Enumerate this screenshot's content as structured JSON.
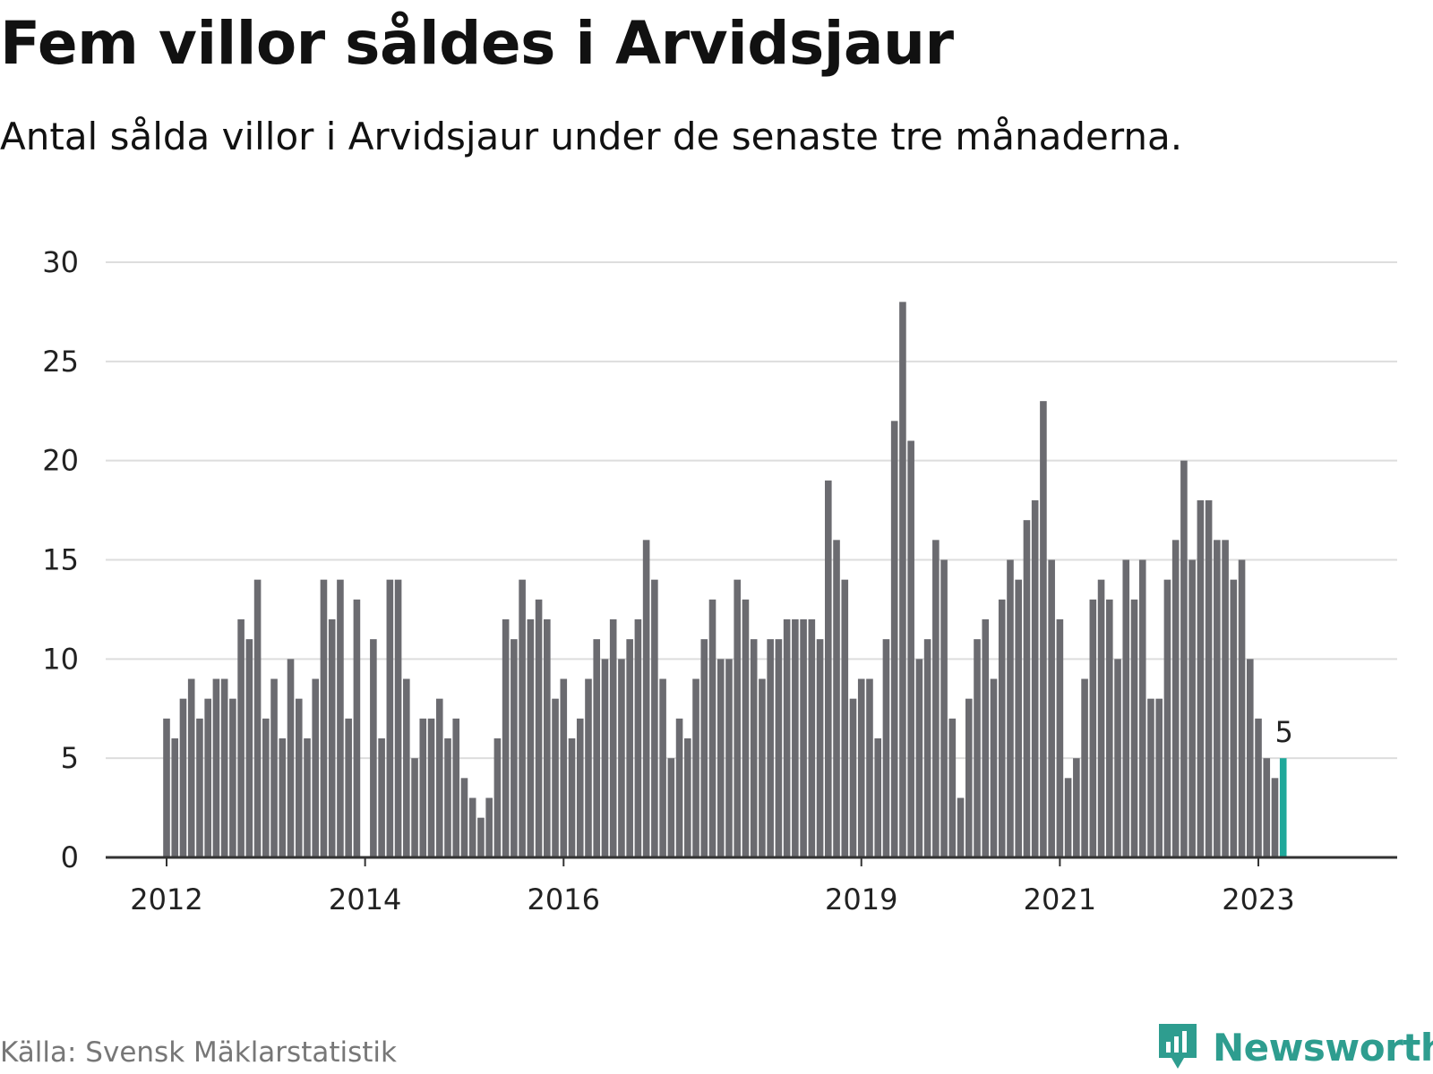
{
  "title": "Fem villor såldes i Arvidsjaur",
  "subtitle": "Antal sålda villor i Arvidsjaur under de senaste tre månaderna.",
  "source": "Källa: Svensk Mäklarstatistik",
  "brand": {
    "name": "Newsworthy",
    "icon": "newsworthy-logo-icon",
    "color": "#2e9d8f"
  },
  "chart_data": {
    "type": "bar",
    "ylim": [
      0,
      30
    ],
    "yticks": [
      0,
      5,
      10,
      15,
      20,
      25,
      30
    ],
    "xticks": [
      {
        "label": "2012",
        "index": 0
      },
      {
        "label": "2014",
        "index": 24
      },
      {
        "label": "2016",
        "index": 48
      },
      {
        "label": "2019",
        "index": 84
      },
      {
        "label": "2021",
        "index": 108
      },
      {
        "label": "2023",
        "index": 132
      }
    ],
    "grid": true,
    "bar_color": "#6b6b70",
    "highlight_color": "#1fa89a",
    "highlight_index": 135,
    "annotation": {
      "index": 135,
      "text": "5"
    },
    "values": [
      7,
      6,
      8,
      9,
      7,
      8,
      9,
      9,
      8,
      12,
      11,
      14,
      7,
      9,
      6,
      10,
      8,
      6,
      9,
      14,
      12,
      14,
      7,
      13,
      0,
      11,
      6,
      14,
      14,
      9,
      5,
      7,
      7,
      8,
      6,
      7,
      4,
      3,
      2,
      3,
      6,
      12,
      11,
      14,
      12,
      13,
      12,
      8,
      9,
      6,
      7,
      9,
      11,
      10,
      12,
      10,
      11,
      12,
      16,
      14,
      9,
      5,
      7,
      6,
      9,
      11,
      13,
      10,
      10,
      14,
      13,
      11,
      9,
      11,
      11,
      12,
      12,
      12,
      12,
      11,
      19,
      16,
      14,
      8,
      9,
      9,
      6,
      11,
      22,
      28,
      21,
      10,
      11,
      16,
      15,
      7,
      3,
      8,
      11,
      12,
      9,
      13,
      15,
      14,
      17,
      18,
      23,
      15,
      12,
      4,
      5,
      9,
      13,
      14,
      13,
      10,
      15,
      13,
      15,
      8,
      8,
      14,
      16,
      20,
      15,
      18,
      18,
      16,
      16,
      14,
      15,
      10,
      7,
      5,
      4,
      5
    ]
  }
}
